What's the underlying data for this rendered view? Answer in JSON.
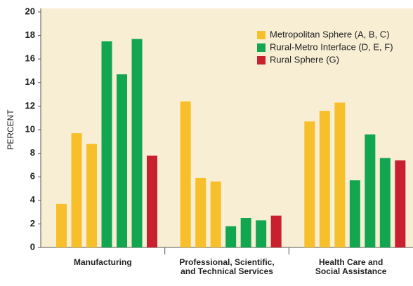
{
  "chart_data": {
    "type": "bar",
    "y_label": "PERCENT",
    "categories": [
      [
        "Manufacturing"
      ],
      [
        "Professional, Scientific,",
        "and Technical Services"
      ],
      [
        "Health Care and",
        "Social Assistance"
      ]
    ],
    "series": [
      {
        "name": "Metropolitan Sphere (A, B, C)",
        "color": "#f7c02a",
        "values": [
          [
            3.7,
            9.7,
            8.8
          ],
          [
            12.4,
            5.9,
            5.6
          ],
          [
            10.7,
            11.6,
            12.3
          ]
        ]
      },
      {
        "name": "Rural-Metro Interface (D, E, F)",
        "color": "#12a651",
        "values": [
          [
            17.5,
            14.7,
            17.7
          ],
          [
            1.8,
            2.5,
            2.3
          ],
          [
            5.7,
            9.6,
            7.6
          ]
        ]
      },
      {
        "name": "Rural Sphere (G)",
        "color": "#c8202f",
        "values": [
          [
            7.8
          ],
          [
            2.7
          ],
          [
            7.4
          ]
        ]
      }
    ],
    "ylim": [
      0,
      20
    ],
    "yticks": [
      0,
      2,
      4,
      6,
      8,
      10,
      12,
      14,
      16,
      18,
      20
    ],
    "grid": false,
    "legend": "top-right"
  }
}
